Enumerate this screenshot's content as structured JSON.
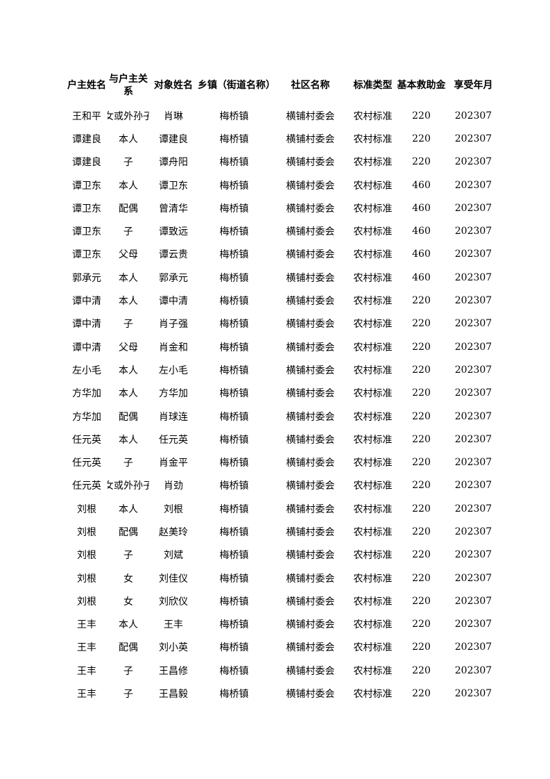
{
  "table": {
    "headers": [
      "户主姓名",
      "与户主关系",
      "对象姓名",
      "乡镇（街道名称）",
      "社区名称",
      "标准类型",
      "基本救助金",
      "享受年月"
    ],
    "rows": [
      [
        "王和平",
        "孙女或外孙子女",
        "肖琳",
        "梅桥镇",
        "横铺村委会",
        "农村标准",
        "220",
        "202307"
      ],
      [
        "谭建良",
        "本人",
        "谭建良",
        "梅桥镇",
        "横铺村委会",
        "农村标准",
        "220",
        "202307"
      ],
      [
        "谭建良",
        "子",
        "谭舟阳",
        "梅桥镇",
        "横铺村委会",
        "农村标准",
        "220",
        "202307"
      ],
      [
        "谭卫东",
        "本人",
        "谭卫东",
        "梅桥镇",
        "横铺村委会",
        "农村标准",
        "460",
        "202307"
      ],
      [
        "谭卫东",
        "配偶",
        "曾清华",
        "梅桥镇",
        "横铺村委会",
        "农村标准",
        "460",
        "202307"
      ],
      [
        "谭卫东",
        "子",
        "谭致远",
        "梅桥镇",
        "横铺村委会",
        "农村标准",
        "460",
        "202307"
      ],
      [
        "谭卫东",
        "父母",
        "谭云贵",
        "梅桥镇",
        "横铺村委会",
        "农村标准",
        "460",
        "202307"
      ],
      [
        "郭承元",
        "本人",
        "郭承元",
        "梅桥镇",
        "横铺村委会",
        "农村标准",
        "460",
        "202307"
      ],
      [
        "谭中清",
        "本人",
        "谭中清",
        "梅桥镇",
        "横铺村委会",
        "农村标准",
        "220",
        "202307"
      ],
      [
        "谭中清",
        "子",
        "肖子强",
        "梅桥镇",
        "横铺村委会",
        "农村标准",
        "220",
        "202307"
      ],
      [
        "谭中清",
        "父母",
        "肖金和",
        "梅桥镇",
        "横铺村委会",
        "农村标准",
        "220",
        "202307"
      ],
      [
        "左小毛",
        "本人",
        "左小毛",
        "梅桥镇",
        "横铺村委会",
        "农村标准",
        "220",
        "202307"
      ],
      [
        "方华加",
        "本人",
        "方华加",
        "梅桥镇",
        "横铺村委会",
        "农村标准",
        "220",
        "202307"
      ],
      [
        "方华加",
        "配偶",
        "肖球连",
        "梅桥镇",
        "横铺村委会",
        "农村标准",
        "220",
        "202307"
      ],
      [
        "任元英",
        "本人",
        "任元英",
        "梅桥镇",
        "横铺村委会",
        "农村标准",
        "220",
        "202307"
      ],
      [
        "任元英",
        "子",
        "肖金平",
        "梅桥镇",
        "横铺村委会",
        "农村标准",
        "220",
        "202307"
      ],
      [
        "任元英",
        "孙女或外孙子女",
        "肖劲",
        "梅桥镇",
        "横铺村委会",
        "农村标准",
        "220",
        "202307"
      ],
      [
        "刘根",
        "本人",
        "刘根",
        "梅桥镇",
        "横铺村委会",
        "农村标准",
        "220",
        "202307"
      ],
      [
        "刘根",
        "配偶",
        "赵美玲",
        "梅桥镇",
        "横铺村委会",
        "农村标准",
        "220",
        "202307"
      ],
      [
        "刘根",
        "子",
        "刘斌",
        "梅桥镇",
        "横铺村委会",
        "农村标准",
        "220",
        "202307"
      ],
      [
        "刘根",
        "女",
        "刘佳仪",
        "梅桥镇",
        "横铺村委会",
        "农村标准",
        "220",
        "202307"
      ],
      [
        "刘根",
        "女",
        "刘欣仪",
        "梅桥镇",
        "横铺村委会",
        "农村标准",
        "220",
        "202307"
      ],
      [
        "王丰",
        "本人",
        "王丰",
        "梅桥镇",
        "横铺村委会",
        "农村标准",
        "220",
        "202307"
      ],
      [
        "王丰",
        "配偶",
        "刘小英",
        "梅桥镇",
        "横铺村委会",
        "农村标准",
        "220",
        "202307"
      ],
      [
        "王丰",
        "子",
        "王昌修",
        "梅桥镇",
        "横铺村委会",
        "农村标准",
        "220",
        "202307"
      ],
      [
        "王丰",
        "子",
        "王昌毅",
        "梅桥镇",
        "横铺村委会",
        "农村标准",
        "220",
        "202307"
      ]
    ]
  }
}
